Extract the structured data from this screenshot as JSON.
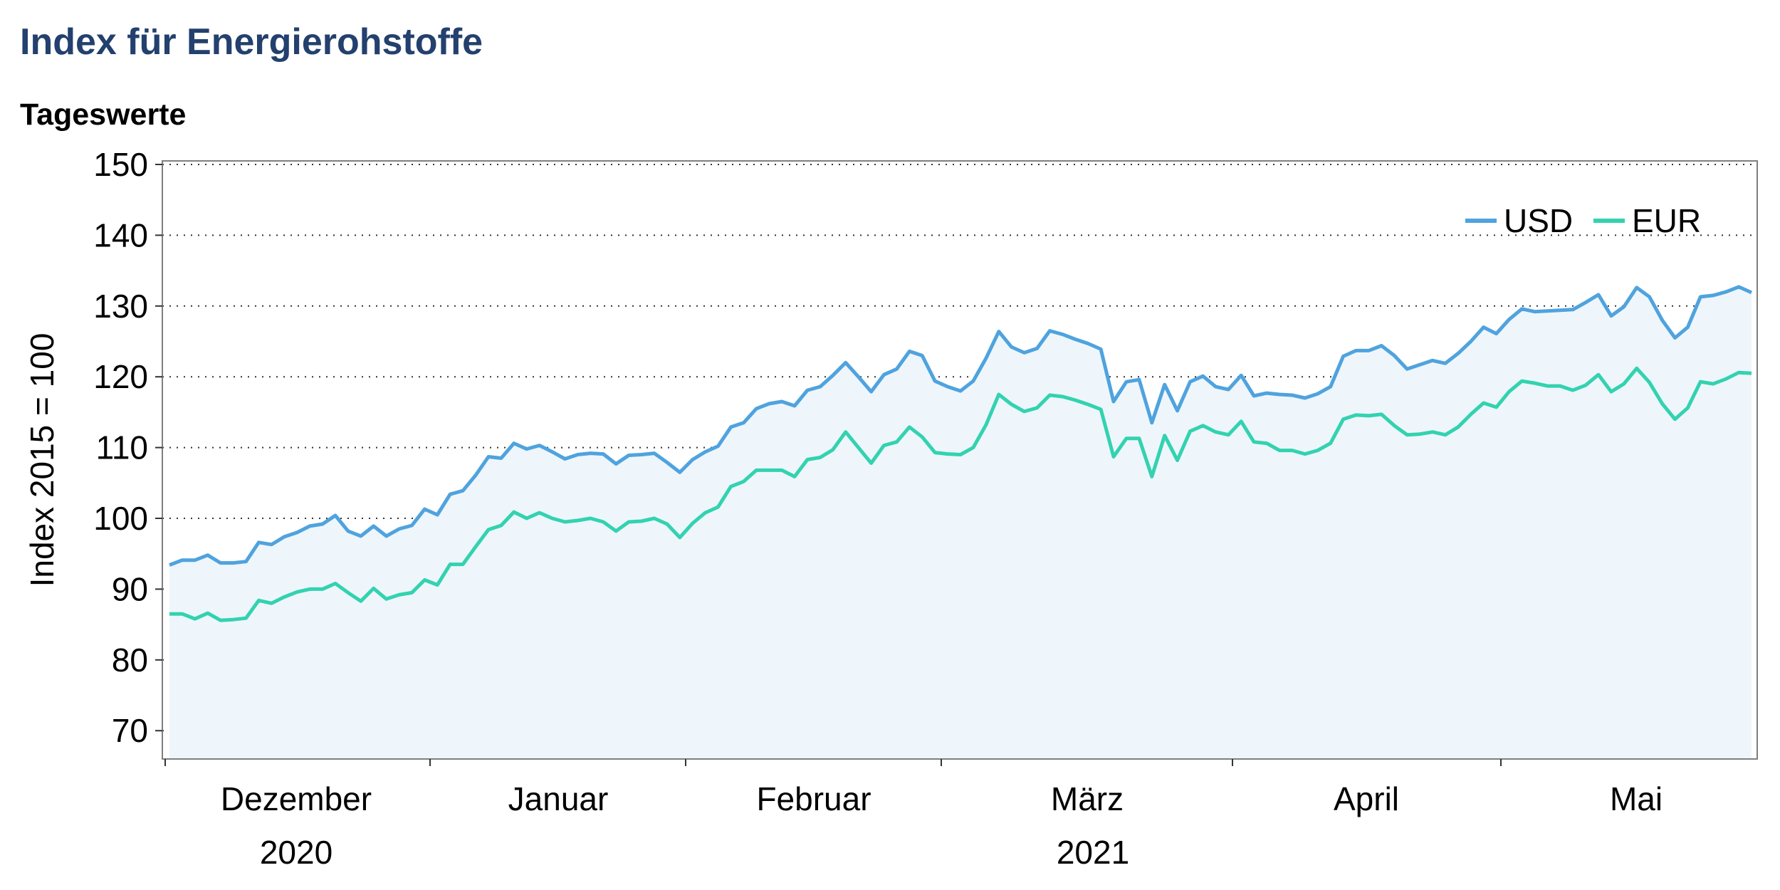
{
  "chart_data": {
    "type": "area",
    "title": "Index für Energierohstoffe",
    "subtitle": "Tageswerte",
    "ylabel": "Index 2015 = 100",
    "xlabel": "",
    "ylim": [
      66,
      150.5
    ],
    "yticks": [
      70,
      80,
      90,
      100,
      110,
      120,
      130,
      140,
      150
    ],
    "y_tick_labels": [
      "70",
      "80",
      "90",
      "100",
      "110",
      "120",
      "130",
      "140",
      "150"
    ],
    "grid": "horizontal dotted",
    "legend_position": "top-right",
    "month_labels": [
      "Dezember",
      "Januar",
      "Februar",
      "März",
      "April",
      "Mai"
    ],
    "year_labels": [
      "2020",
      "2021"
    ],
    "colors": {
      "title": "#23406e",
      "USD": "#4fa3de",
      "EUR": "#33d2b0",
      "fill": "#eef6fb"
    },
    "series": [
      {
        "name": "USD",
        "values": [
          93.4,
          94.1,
          94.1,
          94.8,
          93.7,
          93.7,
          93.9,
          96.6,
          96.3,
          97.4,
          98.0,
          98.9,
          99.2,
          100.4,
          98.2,
          97.5,
          98.9,
          97.5,
          98.5,
          99.0,
          101.3,
          100.5,
          103.4,
          103.9,
          106.1,
          108.7,
          108.5,
          110.6,
          109.8,
          110.3,
          109.4,
          108.4,
          109.0,
          109.2,
          109.1,
          107.7,
          108.9,
          109.0,
          109.2,
          107.9,
          106.5,
          108.3,
          109.4,
          110.2,
          112.9,
          113.5,
          115.5,
          116.2,
          116.5,
          115.9,
          118.1,
          118.6,
          120.2,
          122.0,
          120.0,
          117.9,
          120.3,
          121.1,
          123.6,
          123.0,
          119.4,
          118.6,
          118.0,
          119.4,
          122.6,
          126.4,
          124.2,
          123.4,
          124.0,
          126.5,
          126.0,
          125.3,
          124.7,
          123.9,
          116.5,
          119.3,
          119.6,
          113.5,
          118.9,
          115.2,
          119.3,
          120.1,
          118.6,
          118.2,
          120.2,
          117.3,
          117.7,
          117.5,
          117.4,
          117.0,
          117.6,
          118.6,
          122.9,
          123.7,
          123.7,
          124.4,
          123.0,
          121.1,
          121.7,
          122.3,
          121.9,
          123.3,
          125.0,
          127.0,
          126.1,
          128.1,
          129.6,
          129.2,
          129.3,
          129.4,
          129.5,
          130.5,
          131.6,
          128.6,
          129.9,
          132.6,
          131.3,
          128.0,
          125.5,
          127.0,
          131.3,
          131.5,
          132.0,
          132.7,
          131.9
        ]
      },
      {
        "name": "EUR",
        "values": [
          86.5,
          86.5,
          85.8,
          86.6,
          85.6,
          85.7,
          85.9,
          88.4,
          88.0,
          88.9,
          89.6,
          90.0,
          90.0,
          90.8,
          89.5,
          88.3,
          90.1,
          88.6,
          89.2,
          89.5,
          91.3,
          90.6,
          93.5,
          93.5,
          96.0,
          98.4,
          99.0,
          100.9,
          100.0,
          100.8,
          100.0,
          99.5,
          99.7,
          100.0,
          99.5,
          98.2,
          99.5,
          99.6,
          100.0,
          99.2,
          97.3,
          99.3,
          100.8,
          101.6,
          104.5,
          105.2,
          106.8,
          106.8,
          106.8,
          105.9,
          108.3,
          108.6,
          109.7,
          112.2,
          110.0,
          107.8,
          110.3,
          110.8,
          112.9,
          111.5,
          109.3,
          109.1,
          109.0,
          110.0,
          113.2,
          117.5,
          116.1,
          115.1,
          115.6,
          117.4,
          117.2,
          116.7,
          116.1,
          115.4,
          108.7,
          111.3,
          111.3,
          105.9,
          111.7,
          108.2,
          112.3,
          113.1,
          112.2,
          111.8,
          113.7,
          110.8,
          110.6,
          109.6,
          109.6,
          109.1,
          109.6,
          110.6,
          114.0,
          114.6,
          114.5,
          114.7,
          113.1,
          111.8,
          111.9,
          112.2,
          111.8,
          112.9,
          114.7,
          116.3,
          115.7,
          117.9,
          119.4,
          119.1,
          118.7,
          118.7,
          118.1,
          118.8,
          120.3,
          117.9,
          119.0,
          121.2,
          119.2,
          116.2,
          114.0,
          115.6,
          119.3,
          119.0,
          119.7,
          120.6,
          120.5
        ]
      }
    ]
  }
}
